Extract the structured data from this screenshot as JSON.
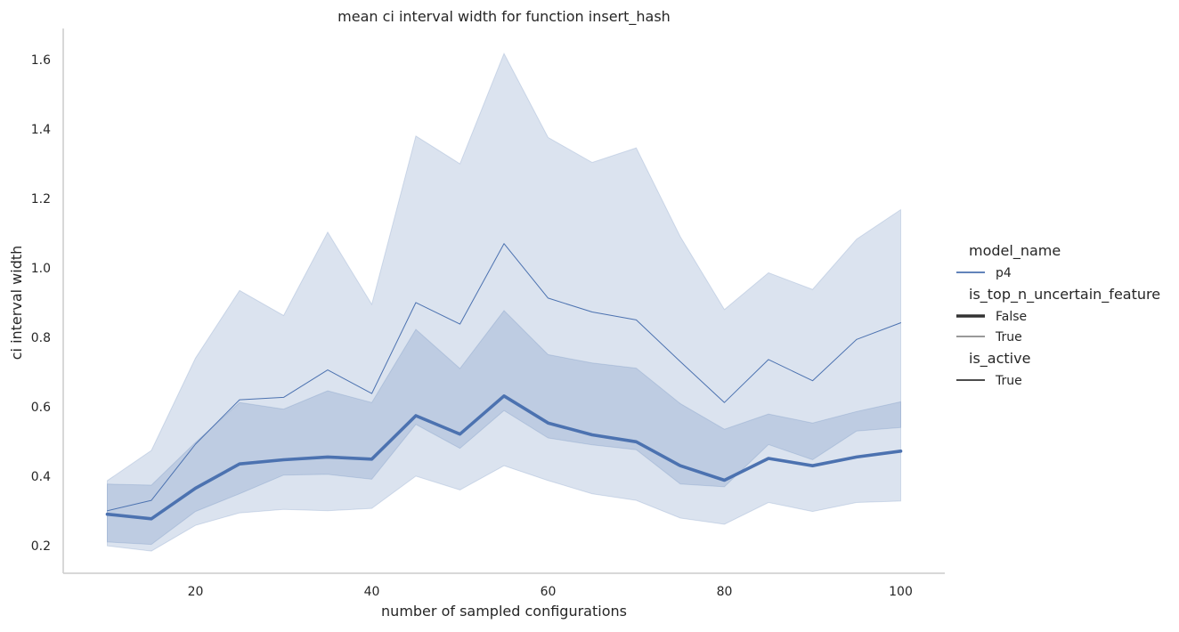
{
  "chart_data": {
    "type": "line",
    "title": "mean ci interval width for function insert_hash",
    "xlabel": "number of sampled configurations",
    "ylabel": "ci interval width",
    "xlim": [
      5,
      105
    ],
    "ylim": [
      0.12,
      1.69
    ],
    "xticks": [
      20,
      40,
      60,
      80,
      100
    ],
    "yticks": [
      0.2,
      0.4,
      0.6,
      0.8,
      1.0,
      1.2,
      1.4,
      1.6
    ],
    "grid": false,
    "color": "#4c72b0",
    "x": [
      10,
      15,
      20,
      25,
      30,
      35,
      40,
      45,
      50,
      55,
      60,
      65,
      70,
      75,
      80,
      85,
      90,
      95,
      100
    ],
    "series": [
      {
        "name": "False",
        "style": "thick",
        "values": [
          0.29,
          0.277,
          0.365,
          0.435,
          0.447,
          0.455,
          0.449,
          0.574,
          0.521,
          0.631,
          0.553,
          0.519,
          0.499,
          0.43,
          0.388,
          0.451,
          0.43,
          0.455,
          0.472
        ],
        "ci_low": [
          0.21,
          0.203,
          0.298,
          0.349,
          0.403,
          0.405,
          0.391,
          0.549,
          0.48,
          0.589,
          0.51,
          0.49,
          0.476,
          0.377,
          0.369,
          0.491,
          0.447,
          0.53,
          0.54
        ],
        "ci_high": [
          0.377,
          0.374,
          0.497,
          0.612,
          0.593,
          0.646,
          0.612,
          0.823,
          0.71,
          0.877,
          0.75,
          0.726,
          0.711,
          0.609,
          0.535,
          0.579,
          0.553,
          0.586,
          0.614
        ]
      },
      {
        "name": "True",
        "style": "thin",
        "values": [
          0.3,
          0.33,
          0.492,
          0.62,
          0.627,
          0.706,
          0.638,
          0.9,
          0.838,
          1.07,
          0.913,
          0.873,
          0.85,
          0.73,
          0.612,
          0.736,
          0.675,
          0.794,
          0.842
        ],
        "ci_low": [
          0.199,
          0.184,
          0.258,
          0.294,
          0.304,
          0.3,
          0.307,
          0.4,
          0.36,
          0.43,
          0.387,
          0.349,
          0.33,
          0.279,
          0.261,
          0.324,
          0.298,
          0.324,
          0.328
        ],
        "ci_high": [
          0.387,
          0.474,
          0.74,
          0.935,
          0.863,
          1.103,
          0.895,
          1.38,
          1.3,
          1.618,
          1.376,
          1.304,
          1.346,
          1.09,
          0.88,
          0.986,
          0.938,
          1.083,
          1.168
        ]
      }
    ],
    "legend": {
      "placement": "right",
      "groups": [
        {
          "title": "model_name",
          "entries": [
            {
              "label": "p4",
              "style": "color"
            }
          ]
        },
        {
          "title": "is_top_n_uncertain_feature",
          "entries": [
            {
              "label": "False",
              "style": "thick"
            },
            {
              "label": "True",
              "style": "thin"
            }
          ]
        },
        {
          "title": "is_active",
          "entries": [
            {
              "label": "True",
              "style": "dark"
            }
          ]
        }
      ]
    }
  }
}
